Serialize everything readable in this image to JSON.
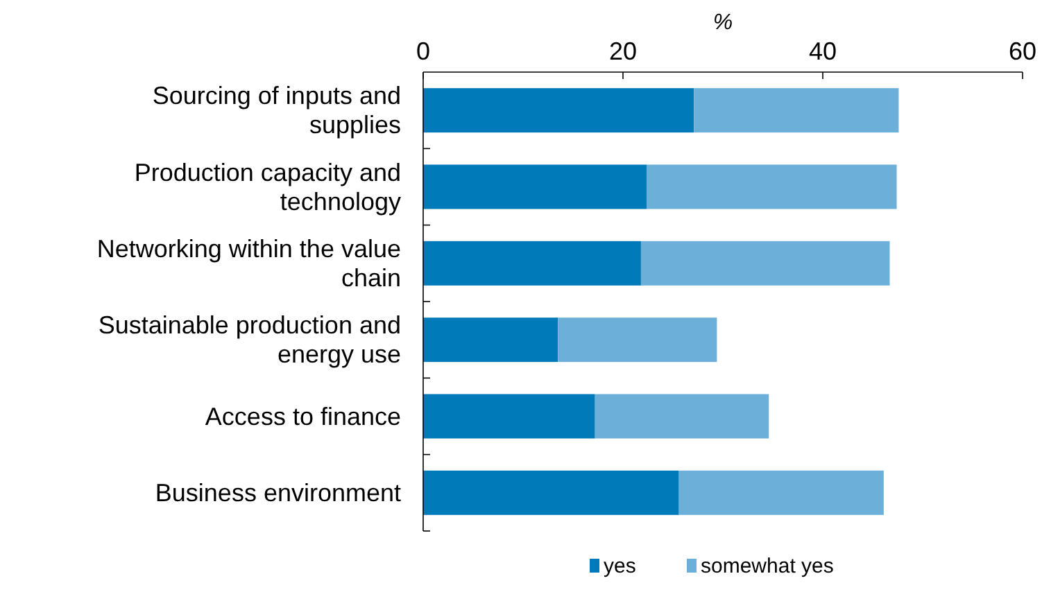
{
  "chart_data": {
    "type": "bar",
    "orientation": "horizontal",
    "stacked": true,
    "xlabel": "%",
    "categories": [
      "Sourcing of inputs and supplies",
      "Production capacity and technology",
      "Networking within the value chain",
      "Sustainable production and energy use",
      "Access to finance",
      "Business environment"
    ],
    "series": [
      {
        "name": "yes",
        "color": "#007ab8",
        "values": [
          27.1,
          22.4,
          21.8,
          13.5,
          17.2,
          25.6
        ]
      },
      {
        "name": "somewhat yes",
        "color": "#6cb0d9",
        "values": [
          20.5,
          25.0,
          24.9,
          15.9,
          17.4,
          20.5
        ]
      }
    ],
    "xlim": [
      0,
      60
    ],
    "xticks": [
      0,
      20,
      40,
      60
    ],
    "grid": false,
    "legend": "bottom"
  }
}
